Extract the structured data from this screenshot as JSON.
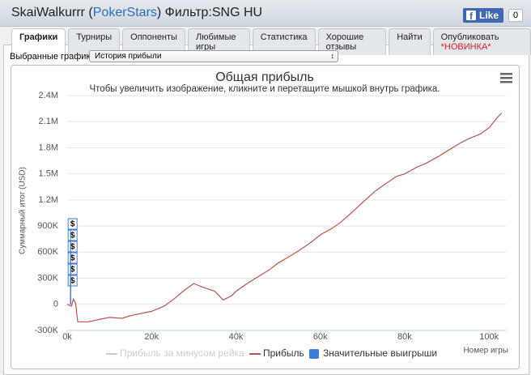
{
  "header": {
    "title_prefix": "SkaiWalkurrr (",
    "site": "PokerStars",
    "title_suffix": ") Фильтр:SNG HU"
  },
  "facebook": {
    "logo": "f",
    "label": "Like",
    "count": "0"
  },
  "tabs": [
    {
      "label": "Графики",
      "active": true
    },
    {
      "label": "Турниры"
    },
    {
      "label": "Оппоненты"
    },
    {
      "label": "Любимые игры"
    },
    {
      "label": "Статистика"
    },
    {
      "label": "Хорошие отзывы"
    },
    {
      "label": "Найти"
    },
    {
      "label": "Опубликовать",
      "badge": "*НОВИНКА*"
    }
  ],
  "selector": {
    "label": "Выбранные графики:",
    "value": "История прибыли"
  },
  "chart_data": {
    "type": "line",
    "title": "Общая прибыль",
    "subtitle": "Чтобы увеличить изображение, кликните и перетащите мышкой внутрь графика.",
    "y_label": "Суммарный итог (USD)",
    "x_label": "Номер игры",
    "xlim": [
      0,
      104000
    ],
    "ylim": [
      -300000,
      2400000
    ],
    "xticks": [
      {
        "value": 0,
        "label": "0k"
      },
      {
        "value": 20000,
        "label": "20k"
      },
      {
        "value": 40000,
        "label": "40k"
      },
      {
        "value": 60000,
        "label": "60k"
      },
      {
        "value": 80000,
        "label": "80k"
      },
      {
        "value": 100000,
        "label": "100k"
      }
    ],
    "yticks": [
      {
        "value": -300000,
        "label": "-300K"
      },
      0,
      {
        "value": 300000,
        "label": "300K"
      },
      {
        "value": 600000,
        "label": "600K"
      },
      {
        "value": 900000,
        "label": "900K"
      },
      {
        "value": 1200000,
        "label": "1.2M"
      },
      {
        "value": 1500000,
        "label": "1.5M"
      },
      {
        "value": 1800000,
        "label": "1.8M"
      },
      {
        "value": 2100000,
        "label": "2.1M"
      },
      {
        "value": 2400000,
        "label": "2.4M"
      }
    ],
    "grid": true,
    "x": [
      0,
      1000,
      1500,
      2000,
      2500,
      5000,
      8000,
      10000,
      13000,
      15000,
      18000,
      20000,
      23000,
      25000,
      28000,
      30000,
      32000,
      35000,
      37000,
      39000,
      40000,
      43000,
      45000,
      48000,
      50000,
      53000,
      55000,
      58000,
      60000,
      63000,
      65000,
      68000,
      70000,
      73000,
      75000,
      78000,
      80000,
      83000,
      85000,
      88000,
      90000,
      93000,
      95000,
      98000,
      100000,
      102000,
      103000
    ],
    "series": [
      {
        "name": "Прибыль",
        "color": "#b9534d",
        "values": [
          0,
          -20000,
          60000,
          10000,
          -200000,
          -200000,
          -170000,
          -150000,
          -160000,
          -130000,
          -100000,
          -80000,
          -20000,
          50000,
          170000,
          240000,
          200000,
          150000,
          50000,
          100000,
          150000,
          250000,
          310000,
          400000,
          475000,
          560000,
          620000,
          720000,
          800000,
          880000,
          950000,
          1080000,
          1170000,
          1300000,
          1370000,
          1470000,
          1500000,
          1580000,
          1620000,
          1700000,
          1760000,
          1850000,
          1900000,
          1960000,
          2030000,
          2150000,
          2200000
        ]
      }
    ],
    "extra_legend": [
      {
        "name": "Прибыль за минусом рейка",
        "color": "#cccccc"
      },
      {
        "name": "Значительные выигрыши",
        "color": "#3b7dd8"
      }
    ],
    "flags": [
      {
        "x": 800,
        "label": "$"
      },
      {
        "x": 800,
        "label": "$"
      },
      {
        "x": 800,
        "label": "$"
      },
      {
        "x": 800,
        "label": "$"
      },
      {
        "x": 800,
        "label": "$"
      },
      {
        "x": 800,
        "label": "$"
      }
    ]
  }
}
